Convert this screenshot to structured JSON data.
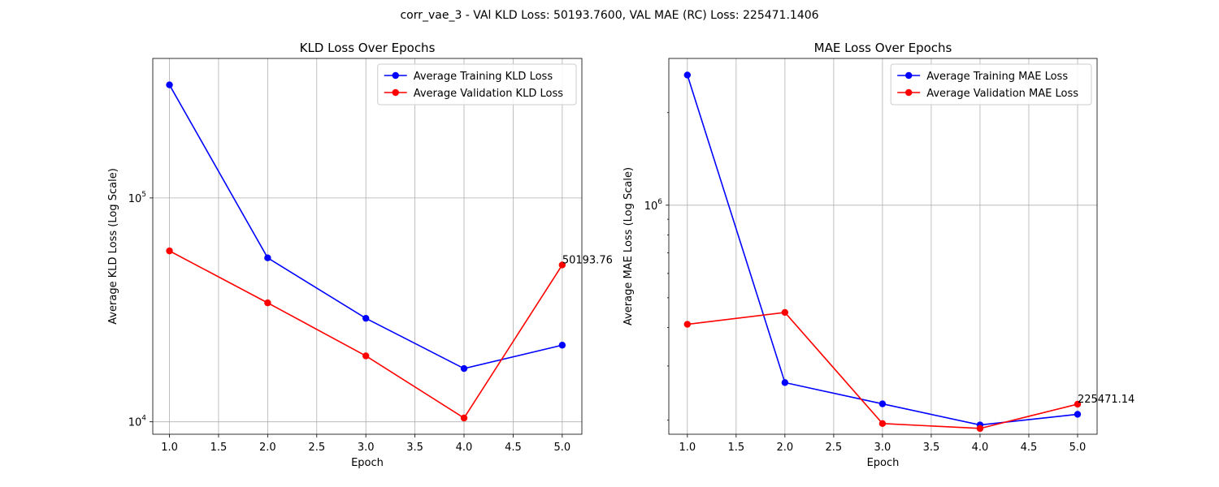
{
  "figure": {
    "title": "corr_vae_3 - VAl KLD Loss: 50193.7600, VAL MAE (RC) Loss: 225471.1406"
  },
  "chart_data": [
    {
      "type": "line",
      "title": "KLD Loss Over Epochs",
      "xlabel": "Epoch",
      "ylabel": "Average KLD Loss (Log Scale)",
      "yscale": "log",
      "xlim": [
        0.83,
        5.2
      ],
      "ylim": [
        8800,
        420000
      ],
      "xticks": [
        1.0,
        1.5,
        2.0,
        2.5,
        3.0,
        3.5,
        4.0,
        4.5,
        5.0
      ],
      "xtick_labels": [
        "1.0",
        "1.5",
        "2.0",
        "2.5",
        "3.0",
        "3.5",
        "4.0",
        "4.5",
        "5.0"
      ],
      "yticks": [
        10000,
        100000
      ],
      "ytick_labels": [
        {
          "base": "10",
          "exp": "4"
        },
        {
          "base": "10",
          "exp": "5"
        }
      ],
      "grid": true,
      "legend_position": "upper right",
      "x": [
        1,
        2,
        3,
        4,
        5
      ],
      "series": [
        {
          "name": "Average Training KLD Loss",
          "color": "#0000ff",
          "values": [
            320000,
            54000,
            29000,
            17300,
            22000
          ]
        },
        {
          "name": "Average Validation KLD Loss",
          "color": "#ff0000",
          "values": [
            58000,
            34000,
            19700,
            10400,
            50193.76
          ]
        }
      ],
      "annotation": {
        "x": 5,
        "y": 50193.76,
        "text": "50193.76"
      }
    },
    {
      "type": "line",
      "title": "MAE Loss Over Epochs",
      "xlabel": "Epoch",
      "ylabel": "Average MAE Loss (Log Scale)",
      "yscale": "log",
      "xlim": [
        0.81,
        5.2
      ],
      "ylim": [
        180000,
        3000000
      ],
      "xticks": [
        1.0,
        1.5,
        2.0,
        2.5,
        3.0,
        3.5,
        4.0,
        4.5,
        5.0
      ],
      "xtick_labels": [
        "1.0",
        "1.5",
        "2.0",
        "2.5",
        "3.0",
        "3.5",
        "4.0",
        "4.5",
        "5.0"
      ],
      "yticks": [
        1000000
      ],
      "ytick_labels": [
        {
          "base": "10",
          "exp": "6"
        }
      ],
      "minor_yticks": [
        200000,
        300000,
        400000,
        500000,
        600000,
        700000,
        800000,
        900000,
        2000000
      ],
      "grid": true,
      "legend_position": "upper right",
      "x": [
        1,
        2,
        3,
        4,
        5
      ],
      "series": [
        {
          "name": "Average Training MAE Loss",
          "color": "#0000ff",
          "values": [
            2650000,
            265000,
            226000,
            193000,
            209000
          ]
        },
        {
          "name": "Average Validation MAE Loss",
          "color": "#ff0000",
          "values": [
            410000,
            448000,
            195000,
            188000,
            225471.14
          ]
        }
      ],
      "annotation": {
        "x": 5,
        "y": 225471.14,
        "text": "225471.14"
      }
    }
  ]
}
